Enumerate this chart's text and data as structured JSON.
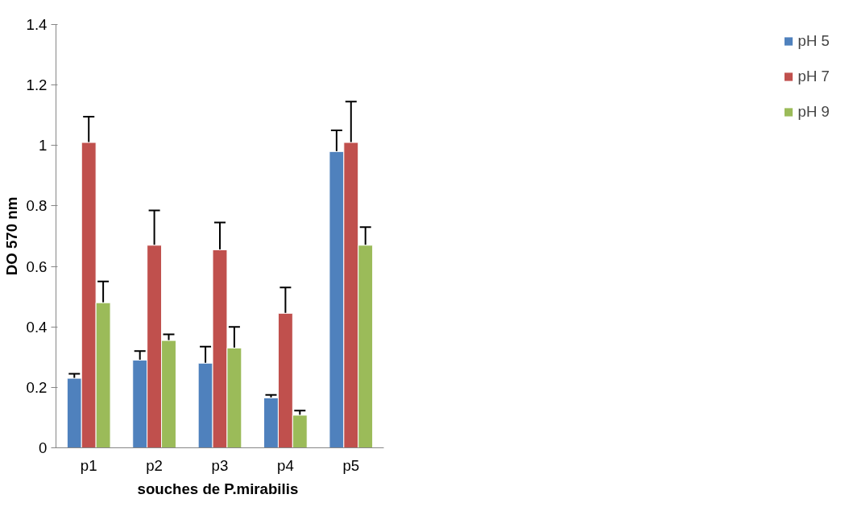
{
  "chart_data": {
    "type": "bar",
    "xlabel": "souches de  P.mirabilis",
    "ylabel": "DO 570 nm",
    "categories": [
      "p1",
      "p2",
      "p3",
      "p4",
      "p5"
    ],
    "series": [
      {
        "name": "pH 5",
        "color": "#4f81bd",
        "values": [
          0.23,
          0.29,
          0.28,
          0.165,
          0.98
        ],
        "errors": [
          0.015,
          0.03,
          0.055,
          0.01,
          0.07
        ]
      },
      {
        "name": "pH 7",
        "color": "#c0504d",
        "values": [
          1.01,
          0.67,
          0.655,
          0.445,
          1.01
        ],
        "errors": [
          0.085,
          0.115,
          0.09,
          0.085,
          0.135
        ]
      },
      {
        "name": "pH 9",
        "color": "#9bbb59",
        "values": [
          0.48,
          0.355,
          0.33,
          0.108,
          0.67
        ],
        "errors": [
          0.07,
          0.02,
          0.07,
          0.015,
          0.06
        ]
      }
    ],
    "ylim": [
      0,
      1.4
    ],
    "yticks": [
      0,
      0.2,
      0.4,
      0.6,
      0.8,
      1,
      1.2,
      1.4
    ],
    "grid": false,
    "legend": "right"
  }
}
